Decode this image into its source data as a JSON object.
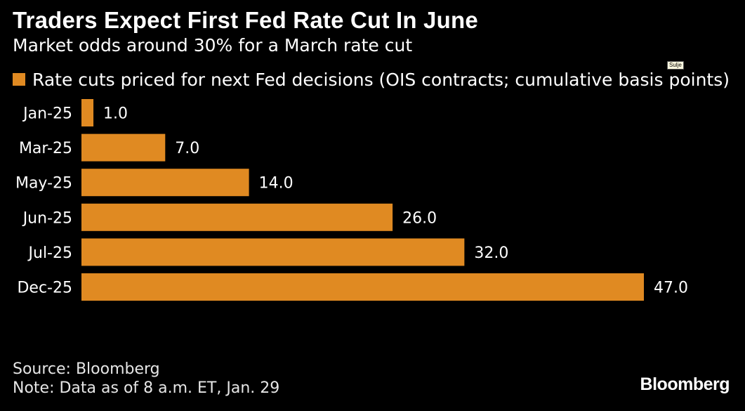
{
  "header": {
    "title": "Traders Expect First Fed Rate Cut In June",
    "subtitle": "Market odds around 30% for a March rate cut"
  },
  "tooltip": {
    "text": "Sulje"
  },
  "footer": {
    "source": "Source: Bloomberg",
    "note": "Note: Data as of 8 a.m. ET, Jan. 29",
    "brand": "Bloomberg"
  },
  "colors": {
    "bar": "#e08a22",
    "background": "#000000",
    "text": "#ffffff"
  },
  "chart_data": {
    "type": "bar",
    "orientation": "horizontal",
    "categories": [
      "Jan-25",
      "Mar-25",
      "May-25",
      "Jun-25",
      "Jul-25",
      "Dec-25"
    ],
    "series": [
      {
        "name": "Rate cuts priced for next Fed decisions (OIS contracts; cumulative basis points)",
        "values": [
          1.0,
          7.0,
          14.0,
          26.0,
          32.0,
          47.0
        ]
      }
    ],
    "data_labels": [
      "1.0",
      "7.0",
      "14.0",
      "26.0",
      "32.0",
      "47.0"
    ],
    "xlim": [
      0,
      47
    ],
    "grid": false,
    "legend_position": "top-left"
  }
}
